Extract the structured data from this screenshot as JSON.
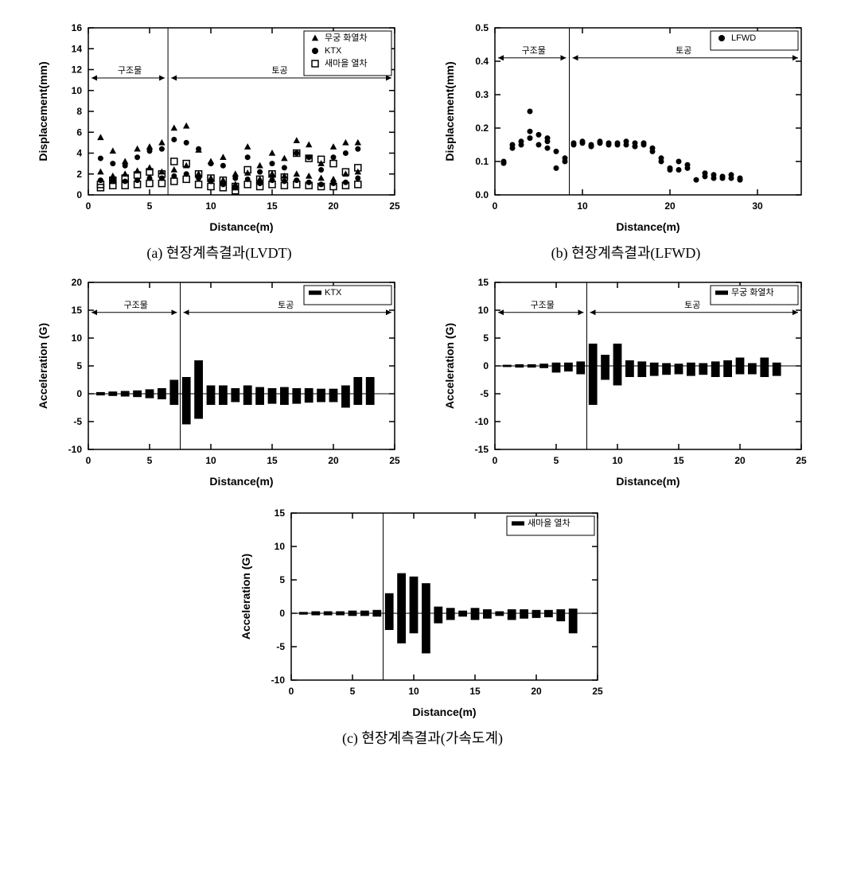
{
  "captions": {
    "a": "(a) 현장계측결과(LVDT)",
    "b": "(b) 현장계측결과(LFWD)",
    "c": "(c)  현장계측결과(가속도계)"
  },
  "region_labels": {
    "left": "구조물",
    "right": "토공"
  },
  "chart_a": {
    "type": "scatter",
    "xlabel": "Distance(m)",
    "ylabel": "Displacement(mm)",
    "xlim": [
      0,
      25
    ],
    "ylim": [
      0,
      16
    ],
    "xtick_step": 5,
    "ytick_step": 2,
    "label_fontsize": 14,
    "tick_fontsize": 12,
    "background_color": "#ffffff",
    "frame_color": "#000000",
    "divider_x": 6.5,
    "legend": [
      {
        "label": "무궁 화열차",
        "marker": "triangle"
      },
      {
        "label": "KTX",
        "marker": "circle"
      },
      {
        "label": "새마을 열차",
        "marker": "square-open"
      }
    ],
    "series": [
      {
        "marker": "triangle",
        "color": "#000000",
        "size": 8,
        "points": [
          [
            1,
            5.5
          ],
          [
            1,
            2.2
          ],
          [
            2,
            1.8
          ],
          [
            2,
            4.2
          ],
          [
            3,
            3.2
          ],
          [
            3,
            2.0
          ],
          [
            4,
            4.4
          ],
          [
            4,
            2.3
          ],
          [
            5,
            4.6
          ],
          [
            5,
            2.6
          ],
          [
            6,
            5.0
          ],
          [
            6,
            2.2
          ],
          [
            7,
            6.4
          ],
          [
            7,
            2.4
          ],
          [
            8,
            6.6
          ],
          [
            8,
            2.8
          ],
          [
            9,
            4.3
          ],
          [
            9,
            2.0
          ],
          [
            10,
            3.2
          ],
          [
            10,
            1.6
          ],
          [
            11,
            3.6
          ],
          [
            11,
            1.4
          ],
          [
            12,
            2.0
          ],
          [
            12,
            1.0
          ],
          [
            13,
            4.6
          ],
          [
            13,
            2.1
          ],
          [
            14,
            2.8
          ],
          [
            14,
            1.5
          ],
          [
            15,
            4.0
          ],
          [
            15,
            2.0
          ],
          [
            16,
            3.5
          ],
          [
            16,
            1.8
          ],
          [
            17,
            5.2
          ],
          [
            17,
            2.0
          ],
          [
            18,
            4.8
          ],
          [
            18,
            1.8
          ],
          [
            19,
            3.0
          ],
          [
            19,
            1.6
          ],
          [
            20,
            4.6
          ],
          [
            20,
            1.5
          ],
          [
            21,
            5.0
          ],
          [
            21,
            2.0
          ],
          [
            22,
            5.0
          ],
          [
            22,
            2.2
          ]
        ]
      },
      {
        "marker": "circle",
        "color": "#000000",
        "size": 7,
        "points": [
          [
            1,
            3.5
          ],
          [
            1,
            1.4
          ],
          [
            2,
            1.4
          ],
          [
            2,
            3.0
          ],
          [
            3,
            2.8
          ],
          [
            3,
            1.3
          ],
          [
            4,
            3.6
          ],
          [
            4,
            1.4
          ],
          [
            5,
            4.2
          ],
          [
            5,
            1.6
          ],
          [
            6,
            4.4
          ],
          [
            6,
            1.6
          ],
          [
            7,
            5.3
          ],
          [
            7,
            1.8
          ],
          [
            8,
            5.0
          ],
          [
            8,
            2.0
          ],
          [
            9,
            4.4
          ],
          [
            9,
            1.6
          ],
          [
            10,
            3.0
          ],
          [
            10,
            1.3
          ],
          [
            11,
            2.8
          ],
          [
            11,
            1.0
          ],
          [
            12,
            1.6
          ],
          [
            12,
            0.7
          ],
          [
            13,
            3.6
          ],
          [
            13,
            1.5
          ],
          [
            14,
            2.2
          ],
          [
            14,
            1.1
          ],
          [
            15,
            3.0
          ],
          [
            15,
            1.4
          ],
          [
            16,
            2.6
          ],
          [
            16,
            1.3
          ],
          [
            17,
            4.0
          ],
          [
            17,
            1.4
          ],
          [
            18,
            3.6
          ],
          [
            18,
            1.2
          ],
          [
            19,
            2.4
          ],
          [
            19,
            1.0
          ],
          [
            20,
            3.6
          ],
          [
            20,
            1.1
          ],
          [
            21,
            4.0
          ],
          [
            21,
            1.2
          ],
          [
            22,
            4.4
          ],
          [
            22,
            1.6
          ]
        ]
      },
      {
        "marker": "square-open",
        "color": "#000000",
        "size": 8,
        "points": [
          [
            1,
            1.0
          ],
          [
            1,
            0.7
          ],
          [
            2,
            0.9
          ],
          [
            2,
            1.4
          ],
          [
            3,
            1.6
          ],
          [
            3,
            0.9
          ],
          [
            4,
            1.9
          ],
          [
            4,
            1.0
          ],
          [
            5,
            2.2
          ],
          [
            5,
            1.1
          ],
          [
            6,
            2.0
          ],
          [
            6,
            1.1
          ],
          [
            7,
            3.2
          ],
          [
            7,
            1.3
          ],
          [
            8,
            3.0
          ],
          [
            8,
            1.5
          ],
          [
            9,
            2.0
          ],
          [
            9,
            1.0
          ],
          [
            10,
            1.6
          ],
          [
            10,
            0.8
          ],
          [
            11,
            1.4
          ],
          [
            11,
            0.7
          ],
          [
            12,
            0.8
          ],
          [
            12,
            0.4
          ],
          [
            13,
            2.4
          ],
          [
            13,
            1.0
          ],
          [
            14,
            1.5
          ],
          [
            14,
            0.8
          ],
          [
            15,
            2.0
          ],
          [
            15,
            1.0
          ],
          [
            16,
            1.7
          ],
          [
            16,
            0.9
          ],
          [
            17,
            4.0
          ],
          [
            17,
            1.0
          ],
          [
            18,
            3.5
          ],
          [
            18,
            0.9
          ],
          [
            19,
            3.4
          ],
          [
            19,
            0.8
          ],
          [
            20,
            3.0
          ],
          [
            20,
            0.8
          ],
          [
            21,
            2.2
          ],
          [
            21,
            0.9
          ],
          [
            22,
            2.6
          ],
          [
            22,
            1.0
          ]
        ]
      }
    ]
  },
  "chart_b": {
    "type": "scatter",
    "xlabel": "Distance(m)",
    "ylabel": "Displacement(mm)",
    "xlim": [
      0,
      35
    ],
    "ylim": [
      0.0,
      0.5
    ],
    "xtick_step": 10,
    "ytick_step": 0.1,
    "label_fontsize": 14,
    "tick_fontsize": 12,
    "background_color": "#ffffff",
    "frame_color": "#000000",
    "divider_x": 8.5,
    "legend": [
      {
        "label": "LFWD",
        "marker": "circle"
      }
    ],
    "series": [
      {
        "marker": "circle",
        "color": "#000000",
        "size": 7,
        "points": [
          [
            1,
            0.1
          ],
          [
            1,
            0.095
          ],
          [
            2,
            0.15
          ],
          [
            2,
            0.14
          ],
          [
            3,
            0.16
          ],
          [
            3,
            0.15
          ],
          [
            4,
            0.19
          ],
          [
            4,
            0.25
          ],
          [
            4,
            0.17
          ],
          [
            5,
            0.18
          ],
          [
            5,
            0.15
          ],
          [
            6,
            0.17
          ],
          [
            6,
            0.16
          ],
          [
            6,
            0.14
          ],
          [
            7,
            0.13
          ],
          [
            7,
            0.08
          ],
          [
            8,
            0.11
          ],
          [
            8,
            0.1
          ],
          [
            9,
            0.155
          ],
          [
            9,
            0.15
          ],
          [
            10,
            0.16
          ],
          [
            10,
            0.155
          ],
          [
            11,
            0.15
          ],
          [
            11,
            0.145
          ],
          [
            12,
            0.16
          ],
          [
            12,
            0.155
          ],
          [
            13,
            0.155
          ],
          [
            13,
            0.15
          ],
          [
            14,
            0.155
          ],
          [
            14,
            0.15
          ],
          [
            15,
            0.16
          ],
          [
            15,
            0.15
          ],
          [
            16,
            0.155
          ],
          [
            16,
            0.145
          ],
          [
            17,
            0.155
          ],
          [
            17,
            0.15
          ],
          [
            18,
            0.14
          ],
          [
            18,
            0.13
          ],
          [
            19,
            0.11
          ],
          [
            19,
            0.1
          ],
          [
            20,
            0.08
          ],
          [
            20,
            0.075
          ],
          [
            21,
            0.1
          ],
          [
            21,
            0.075
          ],
          [
            22,
            0.09
          ],
          [
            22,
            0.08
          ],
          [
            23,
            0.045
          ],
          [
            24,
            0.065
          ],
          [
            24,
            0.055
          ],
          [
            25,
            0.06
          ],
          [
            25,
            0.05
          ],
          [
            26,
            0.055
          ],
          [
            26,
            0.05
          ],
          [
            27,
            0.06
          ],
          [
            27,
            0.05
          ],
          [
            28,
            0.05
          ],
          [
            28,
            0.045
          ]
        ]
      }
    ]
  },
  "chart_c1": {
    "type": "bar-range",
    "xlabel": "Distance(m)",
    "ylabel": "Acceleration (G)",
    "xlim": [
      0,
      25
    ],
    "ylim": [
      -10,
      20
    ],
    "xtick_step": 5,
    "ytick_step": 5,
    "label_fontsize": 14,
    "tick_fontsize": 12,
    "background_color": "#ffffff",
    "frame_color": "#000000",
    "divider_x": 7.5,
    "bar_color": "#000000",
    "bar_width": 0.7,
    "legend": [
      {
        "label": "KTX",
        "marker": "bar"
      }
    ],
    "bars": [
      [
        1,
        -0.3,
        0.3
      ],
      [
        2,
        -0.4,
        0.4
      ],
      [
        3,
        -0.5,
        0.5
      ],
      [
        4,
        -0.6,
        0.6
      ],
      [
        5,
        -0.8,
        0.8
      ],
      [
        6,
        -1.0,
        1.0
      ],
      [
        7,
        -2.0,
        2.5
      ],
      [
        8,
        -5.5,
        3.0
      ],
      [
        9,
        -4.5,
        6.0
      ],
      [
        10,
        -2.0,
        1.5
      ],
      [
        11,
        -2.0,
        1.5
      ],
      [
        12,
        -1.5,
        1.0
      ],
      [
        13,
        -2.0,
        1.5
      ],
      [
        14,
        -2.0,
        1.2
      ],
      [
        15,
        -1.8,
        1.0
      ],
      [
        16,
        -2.0,
        1.2
      ],
      [
        17,
        -1.8,
        1.0
      ],
      [
        18,
        -1.6,
        1.0
      ],
      [
        19,
        -1.5,
        0.9
      ],
      [
        20,
        -1.5,
        0.9
      ],
      [
        21,
        -2.5,
        1.5
      ],
      [
        22,
        -2.0,
        3.0
      ],
      [
        23,
        -2.0,
        3.0
      ]
    ]
  },
  "chart_c2": {
    "type": "bar-range",
    "xlabel": "Distance(m)",
    "ylabel": "Acceleration (G)",
    "xlim": [
      0,
      25
    ],
    "ylim": [
      -15,
      15
    ],
    "xtick_step": 5,
    "ytick_step": 5,
    "label_fontsize": 14,
    "tick_fontsize": 12,
    "background_color": "#ffffff",
    "frame_color": "#000000",
    "divider_x": 7.5,
    "bar_color": "#000000",
    "bar_width": 0.7,
    "legend": [
      {
        "label": "무궁 화열차",
        "marker": "bar"
      }
    ],
    "bars": [
      [
        1,
        -0.2,
        0.2
      ],
      [
        2,
        -0.3,
        0.3
      ],
      [
        3,
        -0.3,
        0.3
      ],
      [
        4,
        -0.4,
        0.4
      ],
      [
        5,
        -1.2,
        0.6
      ],
      [
        6,
        -1.0,
        0.6
      ],
      [
        7,
        -1.5,
        0.8
      ],
      [
        8,
        -7.0,
        4.0
      ],
      [
        9,
        -2.5,
        2.0
      ],
      [
        10,
        -3.5,
        4.0
      ],
      [
        11,
        -2.0,
        1.0
      ],
      [
        12,
        -2.0,
        0.8
      ],
      [
        13,
        -1.8,
        0.6
      ],
      [
        14,
        -1.6,
        0.5
      ],
      [
        15,
        -1.5,
        0.4
      ],
      [
        16,
        -1.8,
        0.6
      ],
      [
        17,
        -1.6,
        0.5
      ],
      [
        18,
        -2.0,
        0.8
      ],
      [
        19,
        -2.0,
        1.0
      ],
      [
        20,
        -1.5,
        1.5
      ],
      [
        21,
        -1.5,
        0.5
      ],
      [
        22,
        -2.0,
        1.5
      ],
      [
        23,
        -1.8,
        0.6
      ]
    ]
  },
  "chart_c3": {
    "type": "bar-range",
    "xlabel": "Distance(m)",
    "ylabel": "Acceleration (G)",
    "xlim": [
      0,
      25
    ],
    "ylim": [
      -10,
      15
    ],
    "xtick_step": 5,
    "ytick_step": 5,
    "label_fontsize": 14,
    "tick_fontsize": 12,
    "background_color": "#ffffff",
    "frame_color": "#000000",
    "divider_x": 7.5,
    "bar_color": "#000000",
    "bar_width": 0.7,
    "legend": [
      {
        "label": "새마을 열차",
        "marker": "bar"
      }
    ],
    "bars": [
      [
        1,
        -0.2,
        0.2
      ],
      [
        2,
        -0.3,
        0.3
      ],
      [
        3,
        -0.3,
        0.3
      ],
      [
        4,
        -0.3,
        0.3
      ],
      [
        5,
        -0.4,
        0.4
      ],
      [
        6,
        -0.4,
        0.4
      ],
      [
        7,
        -0.5,
        0.5
      ],
      [
        8,
        -2.5,
        3.0
      ],
      [
        9,
        -4.5,
        6.0
      ],
      [
        10,
        -3.0,
        5.5
      ],
      [
        11,
        -6.0,
        4.5
      ],
      [
        12,
        -1.5,
        1.0
      ],
      [
        13,
        -1.0,
        0.8
      ],
      [
        14,
        -0.5,
        0.4
      ],
      [
        15,
        -1.0,
        0.8
      ],
      [
        16,
        -0.8,
        0.6
      ],
      [
        17,
        -0.4,
        0.3
      ],
      [
        18,
        -1.0,
        0.6
      ],
      [
        19,
        -0.8,
        0.6
      ],
      [
        20,
        -0.7,
        0.5
      ],
      [
        21,
        -0.6,
        0.5
      ],
      [
        22,
        -1.2,
        0.6
      ],
      [
        23,
        -3.0,
        0.7
      ]
    ]
  }
}
